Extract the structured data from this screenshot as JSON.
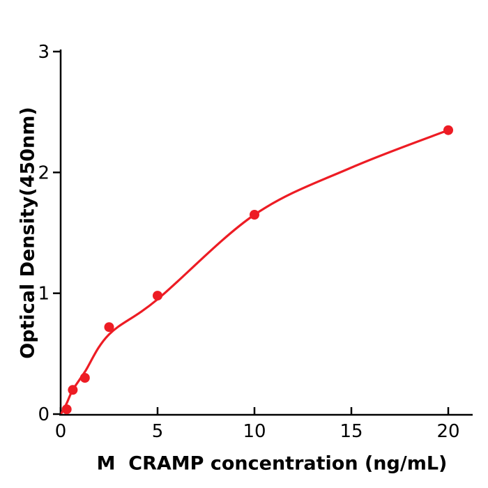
{
  "chart_data": {
    "type": "scatter",
    "title": "",
    "xlabel": "M  CRAMP concentration (ng/mL)",
    "ylabel": "Optical Density(450nm)",
    "x_ticks": [
      0,
      5,
      10,
      15,
      20
    ],
    "y_ticks": [
      0,
      1,
      2,
      3
    ],
    "xlim": [
      0,
      20
    ],
    "ylim": [
      0,
      3
    ],
    "legend": "none",
    "grid": false,
    "points": [
      {
        "x": 0.313,
        "y": 0.04
      },
      {
        "x": 0.625,
        "y": 0.2
      },
      {
        "x": 1.25,
        "y": 0.3
      },
      {
        "x": 2.5,
        "y": 0.72
      },
      {
        "x": 5,
        "y": 0.98
      },
      {
        "x": 10,
        "y": 1.65
      },
      {
        "x": 20,
        "y": 2.35
      }
    ],
    "fit_curve": [
      [
        0.05,
        0.01
      ],
      [
        0.313,
        0.09
      ],
      [
        0.625,
        0.2
      ],
      [
        1.25,
        0.35
      ],
      [
        2.5,
        0.66
      ],
      [
        5,
        0.95
      ],
      [
        10,
        1.65
      ],
      [
        15,
        2.04
      ],
      [
        20,
        2.35
      ]
    ],
    "point_color": "#ed1c24",
    "line_color": "#ed1c24",
    "axis_color": "#000000"
  }
}
